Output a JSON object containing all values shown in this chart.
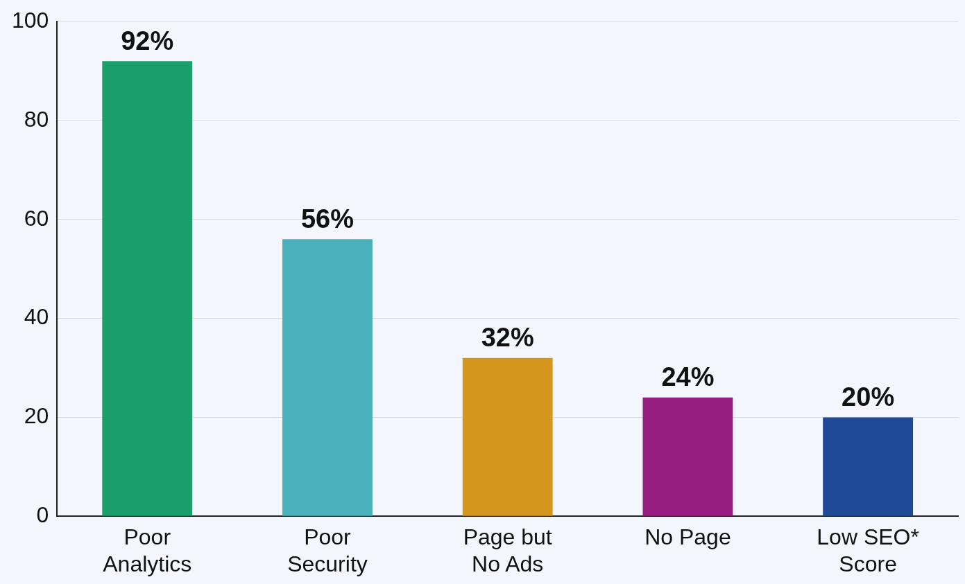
{
  "chart_data": {
    "type": "bar",
    "categories": [
      "Poor Analytics",
      "Poor Security",
      "Page but No Ads",
      "No Page",
      "Low SEO* Score"
    ],
    "values": [
      92,
      56,
      32,
      24,
      20
    ],
    "colors": [
      "#1a9e6a",
      "#4ab0bb",
      "#d4961c",
      "#951e80",
      "#1e4995"
    ],
    "value_labels": [
      "92%",
      "56%",
      "32%",
      "24%",
      "20%"
    ],
    "ylim": [
      0,
      100
    ],
    "yticks": [
      0,
      20,
      40,
      60,
      80,
      100
    ],
    "grid": "y",
    "legend": false
  }
}
